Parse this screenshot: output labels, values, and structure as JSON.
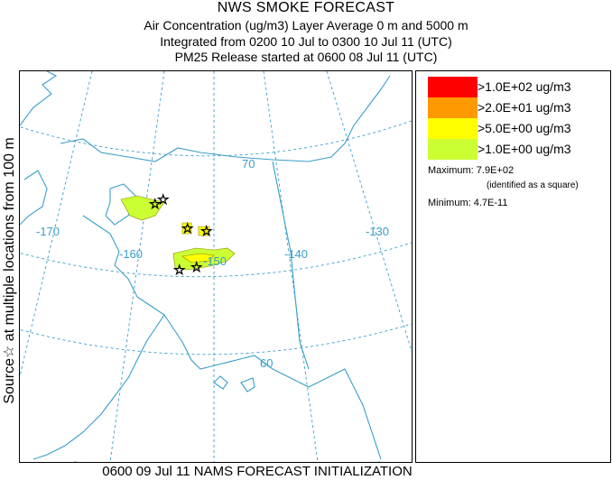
{
  "header": {
    "title": "NWS SMOKE FORECAST",
    "line1": "Air Concentration (ug/m3) Layer Average    0 m and  5000 m",
    "line2": "Integrated from 0200 10 Jul to 0300 10 Jul 11 (UTC)",
    "line3": "PM25 Release started at 0600 08 Jul 11 (UTC)"
  },
  "side_label": "Source☆ at multiple locations  from   100 m",
  "footer": "0600 09 Jul 11 NAMS FORECAST INITIALIZATION",
  "map": {
    "grid_labels": [
      "-170",
      "-160",
      "-150",
      "-140",
      "-130",
      "70",
      "60"
    ],
    "colors": {
      "grid": "#3a9ec9",
      "coast": "#3a9ec9"
    }
  },
  "legend": {
    "levels": [
      {
        "label": ">1.0E+02 ug/m3",
        "color": "#ff0000"
      },
      {
        "label": ">2.0E+01 ug/m3",
        "color": "#ff9900"
      },
      {
        "label": ">5.0E+00 ug/m3",
        "color": "#ffff00"
      },
      {
        "label": ">1.0E+00 ug/m3",
        "color": "#ccff33"
      }
    ],
    "maximum": "Maximum: 7.9E+02",
    "maximum_note": "(identified as a square)",
    "minimum": "Minimum: 4.7E-11"
  }
}
